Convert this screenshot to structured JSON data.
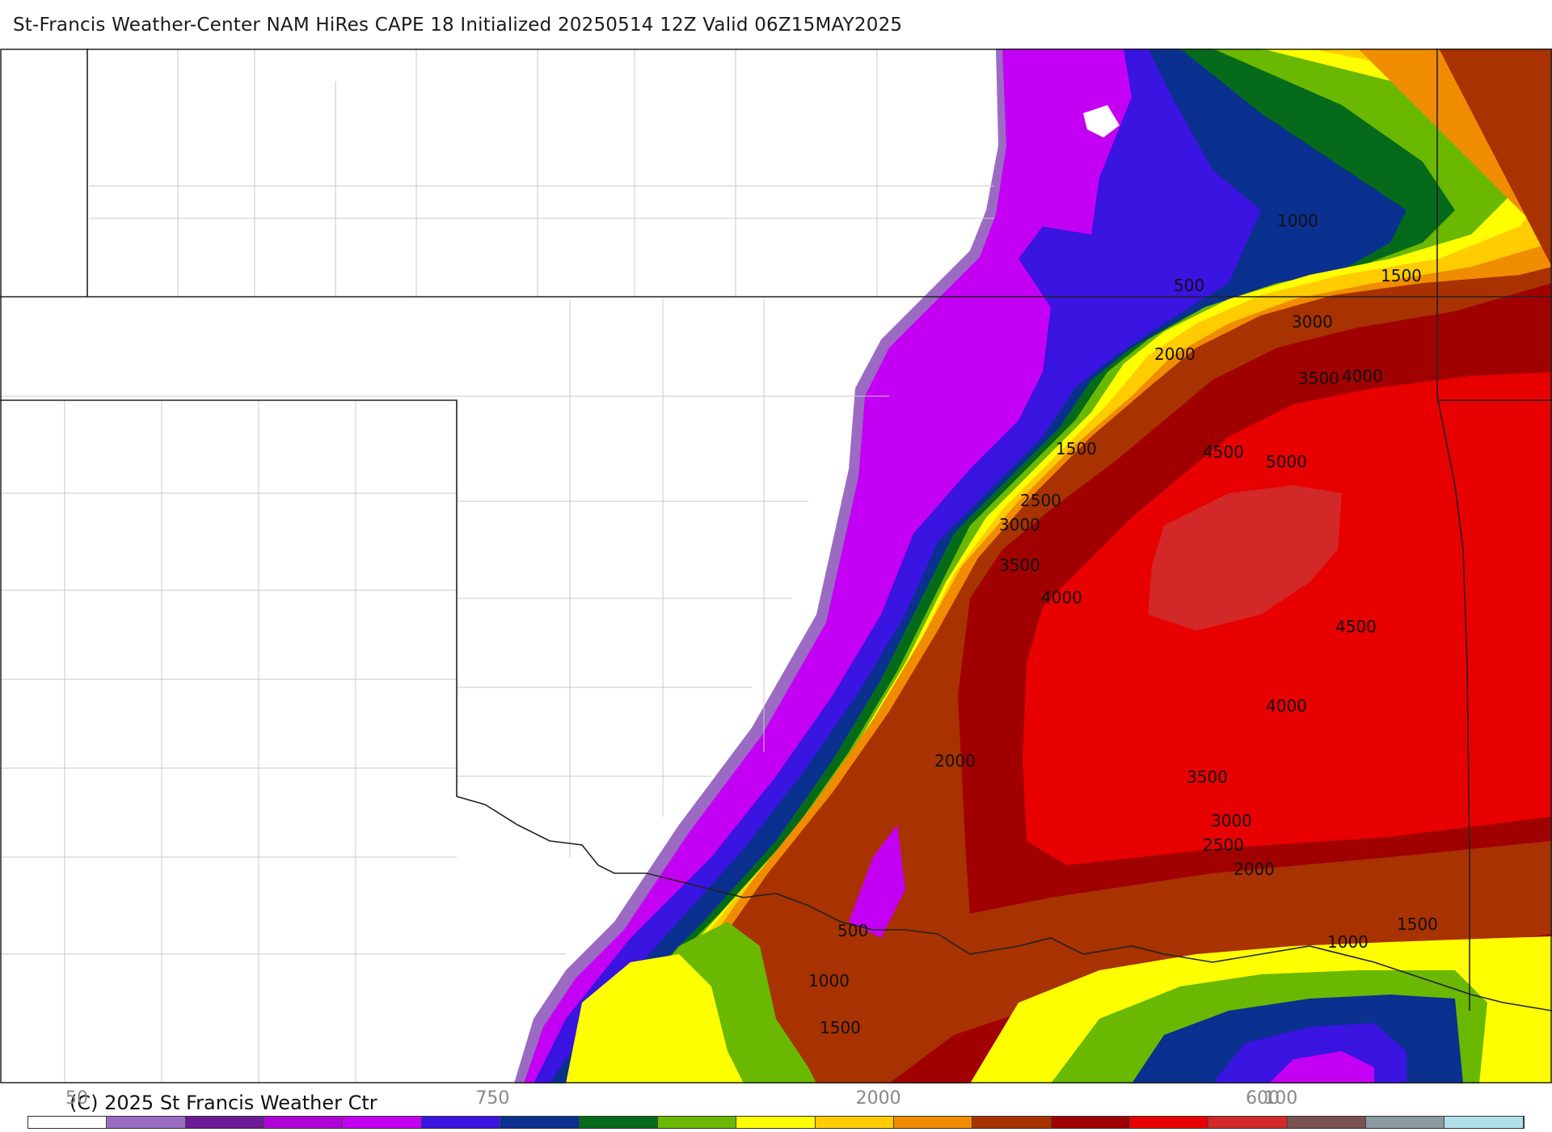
{
  "title": "St-Francis Weather-Center NAM HiRes CAPE  18 Initialized 20250514 12Z Valid 06Z15MAY2025",
  "copyright": "(C) 2025 St Francis Weather Ctr",
  "legend": {
    "colors": [
      "#ffffff",
      "#9b6bc4",
      "#6b1a9a",
      "#b000d8",
      "#c400f4",
      "#3a14e0",
      "#0a3090",
      "#056b1a",
      "#6ab800",
      "#ffff00",
      "#ffcc00",
      "#f08c00",
      "#a83200",
      "#a00000",
      "#e80000",
      "#d22828",
      "#7a5050",
      "#8a9aa0",
      "#b0e0e8"
    ],
    "tick_labels": [
      {
        "text": "50",
        "pos": 0.033
      },
      {
        "text": "750",
        "pos": 0.311
      },
      {
        "text": "2000",
        "pos": 0.569
      },
      {
        "text": "600",
        "pos": 0.826
      },
      {
        "text": "100",
        "pos": 0.838
      }
    ]
  },
  "contour_labels": [
    "1000",
    "1500",
    "500",
    "3000",
    "2000",
    "3500",
    "4000",
    "1500",
    "4500",
    "5000",
    "2500",
    "3000",
    "3500",
    "4000",
    "4500",
    "4000",
    "2000",
    "3500",
    "3000",
    "2500",
    "2000",
    "1500",
    "500",
    "1000",
    "1000",
    "1500"
  ],
  "colors": {
    "border": "#222222",
    "county": "#c8c8c8",
    "background": "#ffffff"
  }
}
